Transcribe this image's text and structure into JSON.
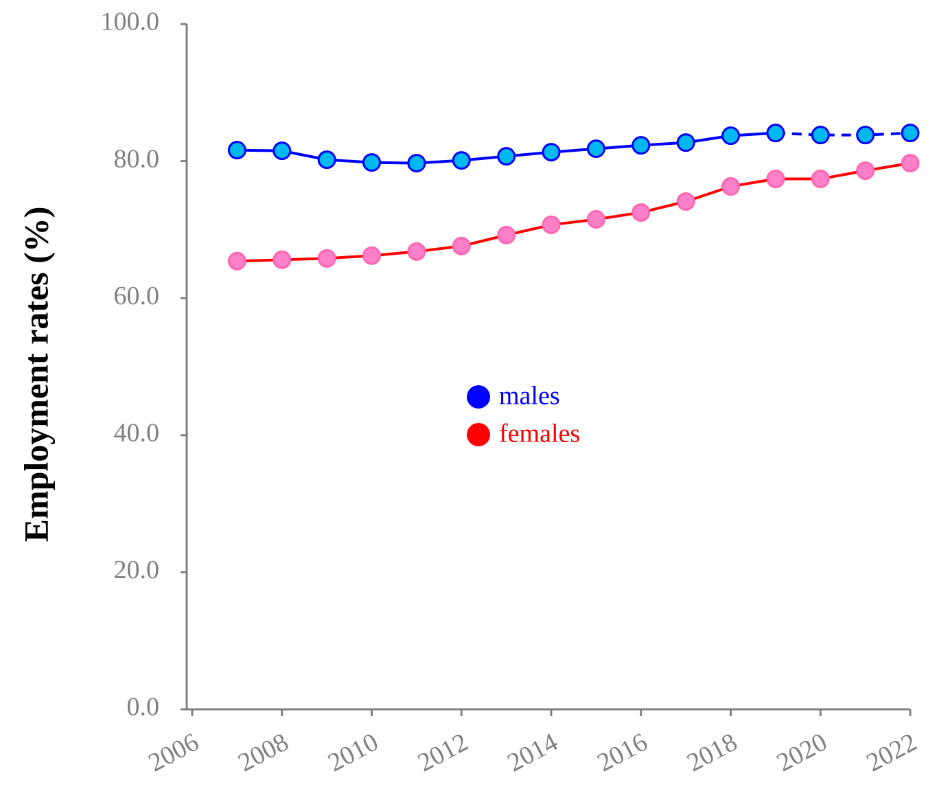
{
  "chart_data": {
    "type": "line",
    "y_label": "Employment rates (%)",
    "x": [
      2007,
      2008,
      2009,
      2010,
      2011,
      2012,
      2013,
      2014,
      2015,
      2016,
      2017,
      2018,
      2019,
      2020,
      2021,
      2022
    ],
    "series": [
      {
        "name": "males",
        "color": "#0000ff",
        "marker_color": "#00b8f0",
        "dashed_after": 2019,
        "values": [
          81.6,
          81.5,
          80.2,
          79.8,
          79.7,
          80.1,
          80.7,
          81.3,
          81.8,
          82.3,
          82.7,
          83.7,
          84.1,
          83.8,
          83.8,
          84.1
        ]
      },
      {
        "name": "females",
        "color": "#ff0000",
        "marker_color": "#ff80c8",
        "marker_edge": "#ff66b3",
        "values": [
          65.4,
          65.6,
          65.8,
          66.2,
          66.8,
          67.6,
          69.2,
          70.7,
          71.5,
          72.5,
          74.1,
          76.3,
          77.4,
          77.4,
          78.6,
          79.7
        ]
      }
    ],
    "xlim": [
      2006,
      2022
    ],
    "xticks": [
      2006,
      2008,
      2010,
      2012,
      2014,
      2016,
      2018,
      2020,
      2022
    ],
    "ylim": [
      0,
      100
    ],
    "yticks": [
      {
        "value": 0,
        "label": "0.0"
      },
      {
        "value": 20,
        "label": "20.0"
      },
      {
        "value": 40,
        "label": "40.0"
      },
      {
        "value": 60,
        "label": "60.0"
      },
      {
        "value": 80,
        "label": "80.0"
      },
      {
        "value": 100,
        "label": "100.0"
      }
    ],
    "legend": "center"
  }
}
